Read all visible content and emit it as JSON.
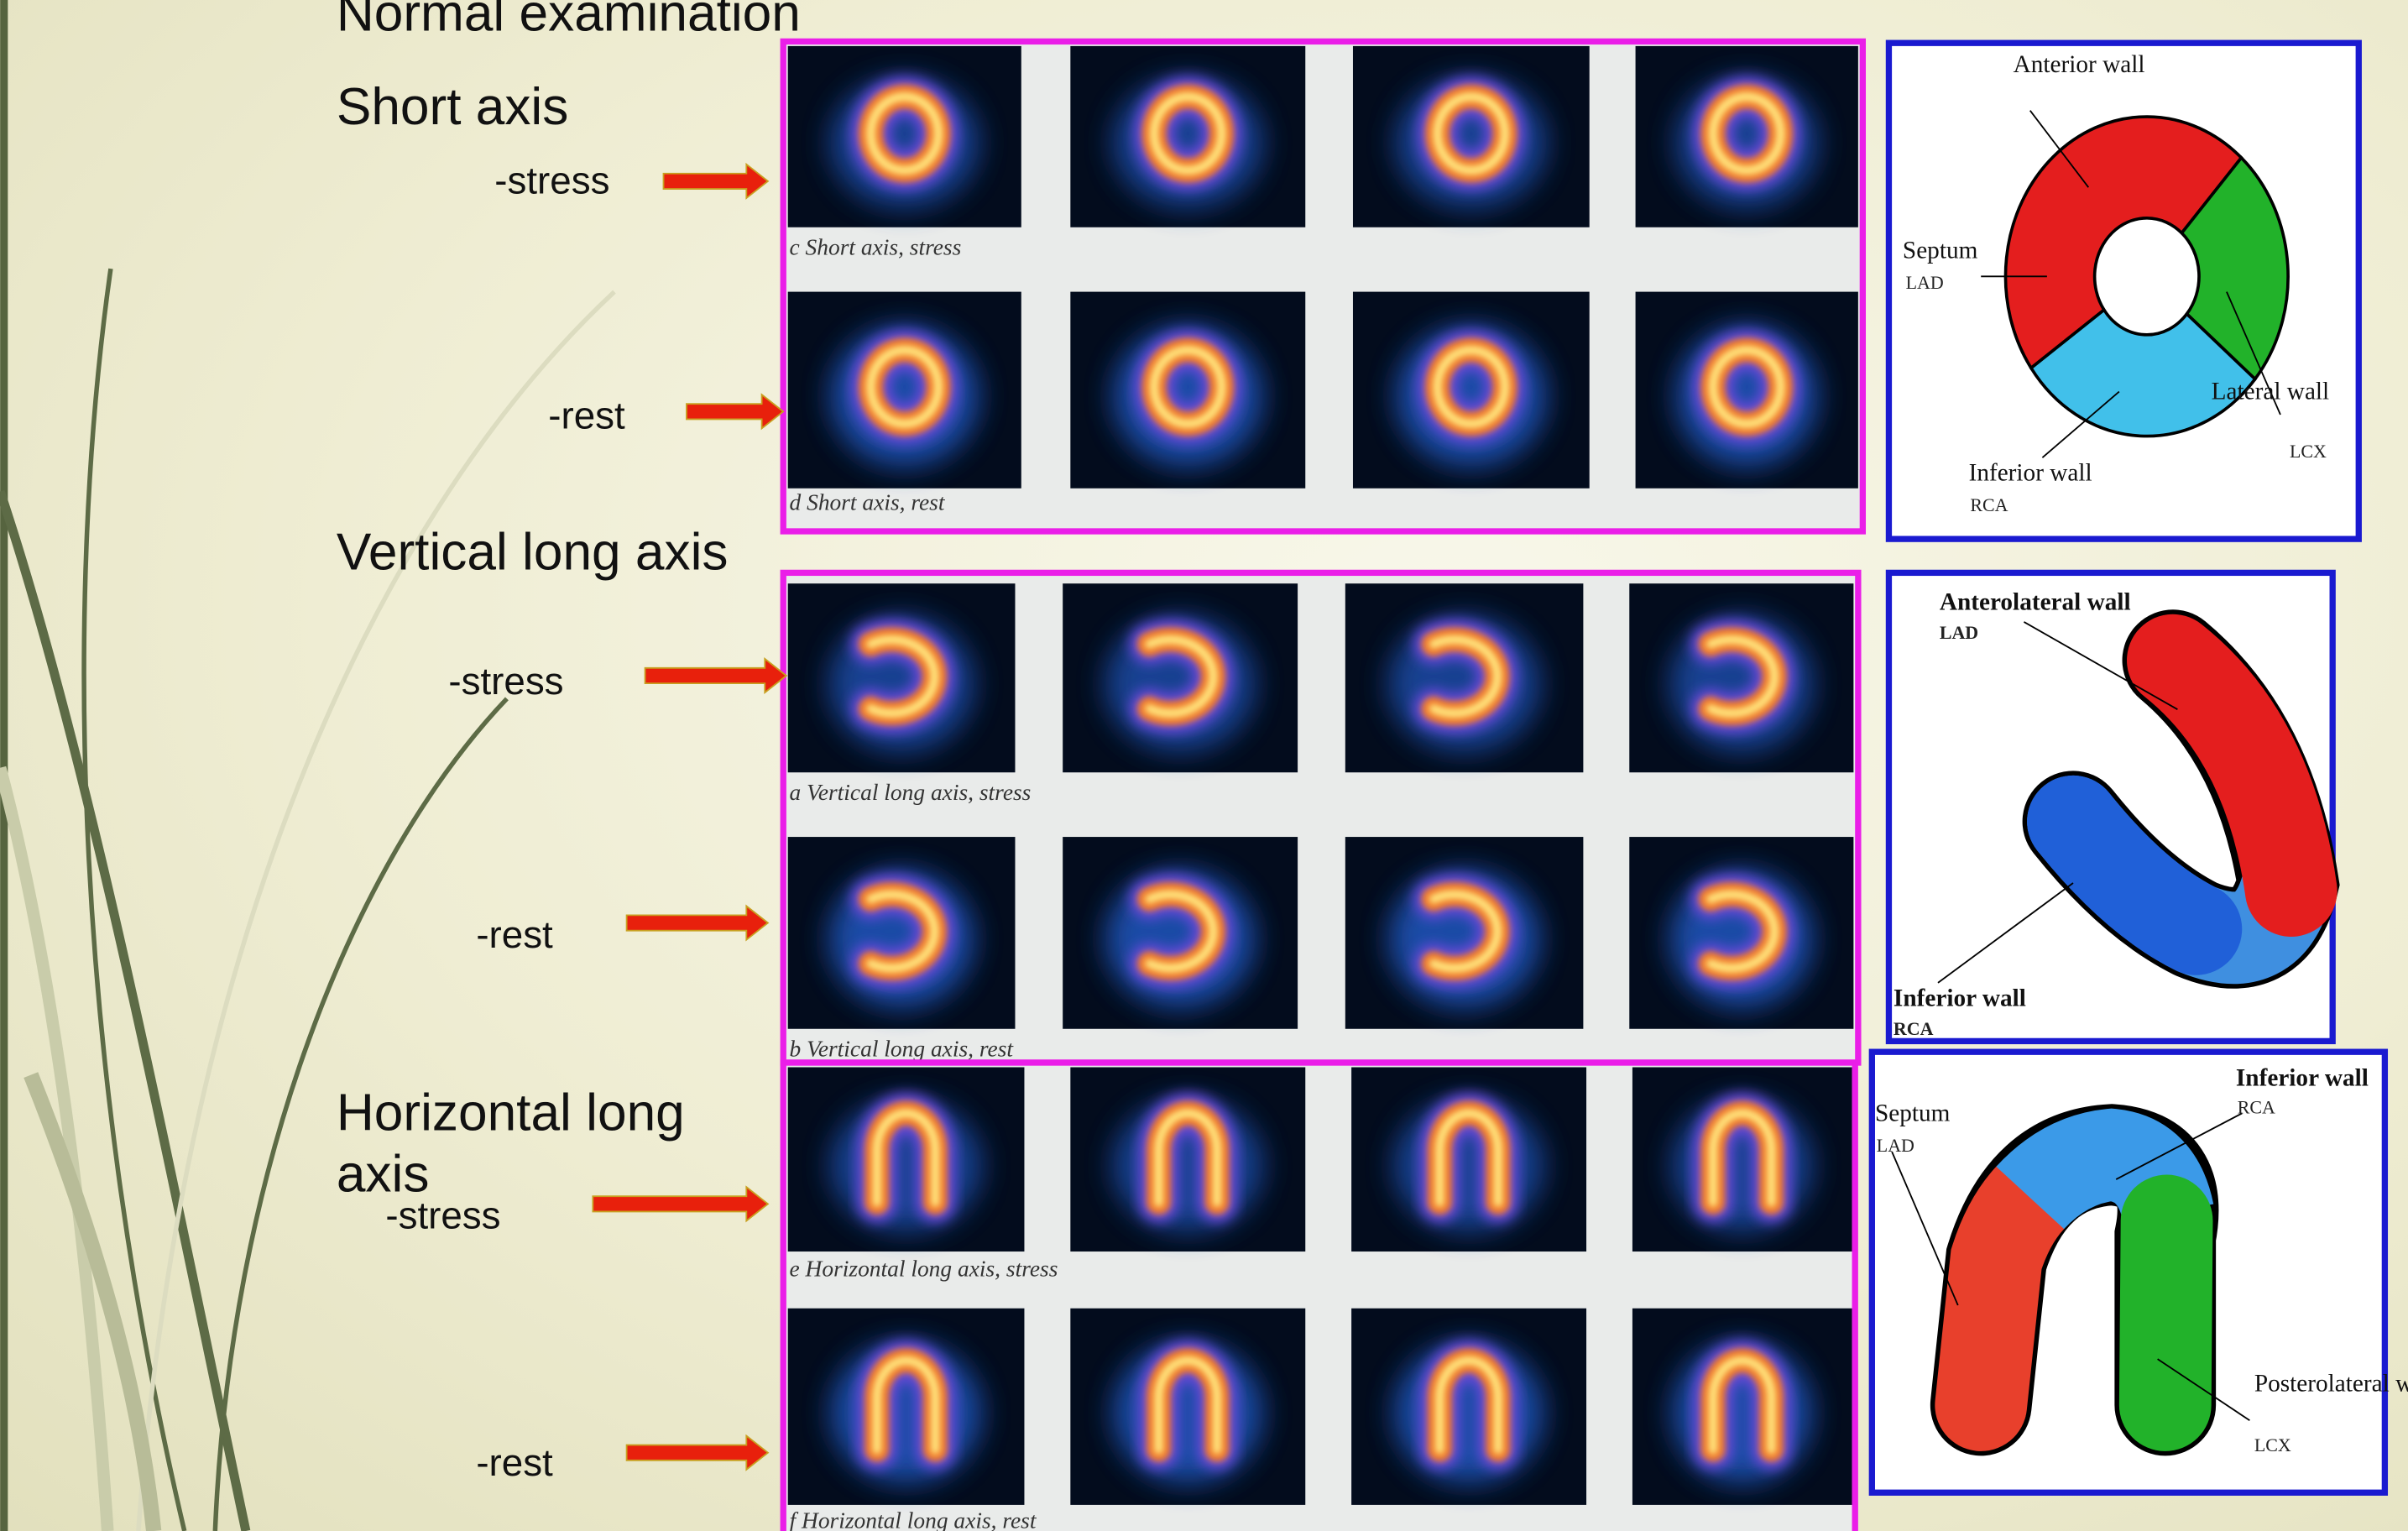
{
  "title": "Normal examination",
  "sections": [
    {
      "heading": "Short axis",
      "views": [
        {
          "label": "-stress",
          "caption": "c  Short axis, stress"
        },
        {
          "label": "-rest",
          "caption": "d  Short axis, rest"
        }
      ]
    },
    {
      "heading": "Vertical long axis",
      "views": [
        {
          "label": "-stress",
          "caption": "a  Vertical long axis, stress"
        },
        {
          "label": "-rest",
          "caption": "b  Vertical long axis, rest"
        }
      ]
    },
    {
      "heading": "Horizontal long axis",
      "views": [
        {
          "label": "-stress",
          "caption": "e  Horizontal long axis, stress"
        },
        {
          "label": "-rest",
          "caption": "f  Horizontal long axis, rest"
        }
      ]
    }
  ],
  "diagrams": [
    {
      "labels": [
        "Anterior wall",
        "Septum",
        "LAD",
        "Lateral wall",
        "LCX",
        "Inferior wall",
        "RCA"
      ]
    },
    {
      "labels": [
        "Anterolateral wall",
        "LAD",
        "Inferior wall",
        "RCA"
      ]
    },
    {
      "labels": [
        "Septum",
        "LAD",
        "Inferior wall",
        "RCA",
        "Posterolateral wall",
        "LCX"
      ]
    }
  ]
}
